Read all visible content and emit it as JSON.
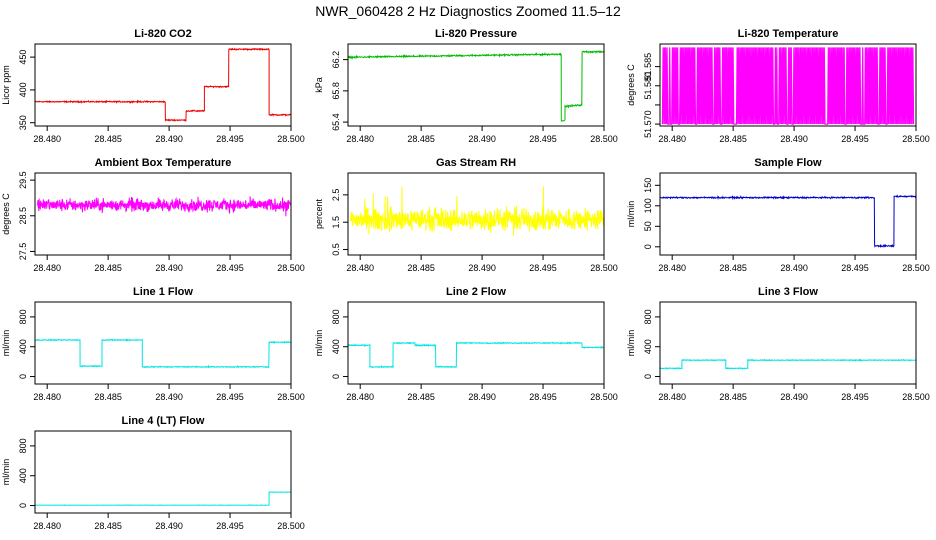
{
  "title": "NWR_060428  2 Hz Diagnostics Zoomed 11.5–12",
  "chart_data": [
    {
      "type": "line",
      "title": "Li-820 CO2",
      "ylabel": "Licor ppm",
      "color": "#ee0000",
      "xlim": [
        28.479,
        28.5
      ],
      "ylim": [
        345,
        470
      ],
      "yticks": [
        350,
        400,
        450
      ],
      "xticks": [
        28.48,
        28.485,
        28.49,
        28.495,
        28.5
      ],
      "xtick_labels": [
        "28.480",
        "28.485",
        "28.490",
        "28.495",
        "28.500"
      ],
      "segments": [
        {
          "x0": 28.479,
          "x1": 28.4897,
          "y": 382
        },
        {
          "x0": 28.4897,
          "x1": 28.4914,
          "y": 354
        },
        {
          "x0": 28.4914,
          "x1": 28.4929,
          "y": 368
        },
        {
          "x0": 28.4929,
          "x1": 28.4949,
          "y": 405
        },
        {
          "x0": 28.4949,
          "x1": 28.4982,
          "y": 462
        },
        {
          "x0": 28.4982,
          "x1": 28.5,
          "y": 362
        }
      ],
      "noise": 0.8
    },
    {
      "type": "line",
      "title": "Li-820 Pressure",
      "ylabel": "kPa",
      "color": "#00bb00",
      "xlim": [
        28.479,
        28.5
      ],
      "ylim": [
        65.35,
        66.4
      ],
      "yticks": [
        65.4,
        65.8,
        66.2
      ],
      "ytick_labels": [
        "65.4",
        "65.8",
        "66.2"
      ],
      "xticks": [
        28.48,
        28.485,
        28.49,
        28.495,
        28.5
      ],
      "xtick_labels": [
        "28.480",
        "28.485",
        "28.490",
        "28.495",
        "28.500"
      ],
      "segments": [
        {
          "x0": 28.479,
          "x1": 28.4965,
          "y0": 66.23,
          "y1": 66.27
        },
        {
          "x0": 28.4965,
          "x1": 28.4968,
          "y": 65.42
        },
        {
          "x0": 28.4968,
          "x1": 28.4982,
          "y0": 65.6,
          "y1": 65.62
        },
        {
          "x0": 28.4982,
          "x1": 28.5,
          "y": 66.3
        }
      ],
      "noise": 0.008
    },
    {
      "type": "line",
      "title": "Li-820 Temperature",
      "ylabel": "degrees C",
      "color": "#ff00ff",
      "xlim": [
        28.479,
        28.5
      ],
      "ylim": [
        51.5695,
        51.5909
      ],
      "yticks": [
        51.57,
        51.575,
        51.58,
        51.585
      ],
      "ytick_labels": [
        "51.570",
        "",
        "51.580",
        "51.585"
      ],
      "xticks": [
        28.48,
        28.485,
        28.49,
        28.495,
        28.5
      ],
      "xtick_labels": [
        "28.480",
        "28.485",
        "28.490",
        "28.495",
        "28.500"
      ],
      "levels": [
        51.57,
        51.59
      ]
    },
    {
      "type": "line",
      "title": "Ambient Box Temperature",
      "ylabel": "degrees C",
      "color": "#ff00ff",
      "xlim": [
        28.479,
        28.5
      ],
      "ylim": [
        27.4,
        29.7
      ],
      "yticks": [
        27.5,
        28.5,
        29.5
      ],
      "xticks": [
        28.48,
        28.485,
        28.49,
        28.495,
        28.5
      ],
      "xtick_labels": [
        "28.480",
        "28.485",
        "28.490",
        "28.495",
        "28.500"
      ],
      "mean": 28.8,
      "noise": 0.15
    },
    {
      "type": "line",
      "title": "Gas Stream RH",
      "ylabel": "percent",
      "color": "#ffff00",
      "xlim": [
        28.479,
        28.5
      ],
      "ylim": [
        0.3,
        3.3
      ],
      "yticks": [
        0.5,
        1.5,
        2.5
      ],
      "ytick_labels": [
        "0.5",
        "1.5",
        "2.5"
      ],
      "xticks": [
        28.48,
        28.485,
        28.49,
        28.495,
        28.5
      ],
      "xtick_labels": [
        "28.480",
        "28.485",
        "28.490",
        "28.495",
        "28.500"
      ],
      "mean": 1.6,
      "noise": 0.35
    },
    {
      "type": "line",
      "title": "Sample Flow",
      "ylabel": "ml/min",
      "color": "#0000cc",
      "xlim": [
        28.479,
        28.5
      ],
      "ylim": [
        -20,
        180
      ],
      "yticks": [
        0,
        50,
        100,
        150
      ],
      "xticks": [
        28.48,
        28.485,
        28.49,
        28.495,
        28.5
      ],
      "xtick_labels": [
        "28.480",
        "28.485",
        "28.490",
        "28.495",
        "28.500"
      ],
      "segments": [
        {
          "x0": 28.479,
          "x1": 28.4966,
          "y": 120
        },
        {
          "x0": 28.4966,
          "x1": 28.4982,
          "y": 2
        },
        {
          "x0": 28.4982,
          "x1": 28.5,
          "y": 123
        }
      ],
      "noise": 1.5
    },
    {
      "type": "line",
      "title": "Line 1 Flow",
      "ylabel": "ml/min",
      "color": "#00e5e5",
      "xlim": [
        28.479,
        28.5
      ],
      "ylim": [
        -100,
        1000
      ],
      "yticks": [
        0,
        400,
        800
      ],
      "xticks": [
        28.48,
        28.485,
        28.49,
        28.495,
        28.5
      ],
      "xtick_labels": [
        "28.480",
        "28.485",
        "28.490",
        "28.495",
        "28.500"
      ],
      "segments": [
        {
          "x0": 28.479,
          "x1": 28.4827,
          "y": 490
        },
        {
          "x0": 28.4827,
          "x1": 28.4845,
          "y": 140
        },
        {
          "x0": 28.4845,
          "x1": 28.4878,
          "y": 490
        },
        {
          "x0": 28.4878,
          "x1": 28.4982,
          "y": 130
        },
        {
          "x0": 28.4982,
          "x1": 28.5,
          "y": 460
        }
      ],
      "noise": 6
    },
    {
      "type": "line",
      "title": "Line 2 Flow",
      "ylabel": "ml/min",
      "color": "#00e5e5",
      "xlim": [
        28.479,
        28.5
      ],
      "ylim": [
        -100,
        1000
      ],
      "yticks": [
        0,
        400,
        800
      ],
      "xticks": [
        28.48,
        28.485,
        28.49,
        28.495,
        28.5
      ],
      "xtick_labels": [
        "28.480",
        "28.485",
        "28.490",
        "28.495",
        "28.500"
      ],
      "segments": [
        {
          "x0": 28.479,
          "x1": 28.4808,
          "y": 420
        },
        {
          "x0": 28.4808,
          "x1": 28.4827,
          "y": 130
        },
        {
          "x0": 28.4827,
          "x1": 28.4845,
          "y": 450
        },
        {
          "x0": 28.4845,
          "x1": 28.4862,
          "y": 420
        },
        {
          "x0": 28.4862,
          "x1": 28.4879,
          "y": 130
        },
        {
          "x0": 28.4879,
          "x1": 28.4982,
          "y": 450
        },
        {
          "x0": 28.4982,
          "x1": 28.5,
          "y": 390
        }
      ],
      "noise": 6
    },
    {
      "type": "line",
      "title": "Line 3 Flow",
      "ylabel": "ml/min",
      "color": "#00e5e5",
      "xlim": [
        28.479,
        28.5
      ],
      "ylim": [
        -100,
        1000
      ],
      "yticks": [
        0,
        400,
        800
      ],
      "xticks": [
        28.48,
        28.485,
        28.49,
        28.495,
        28.5
      ],
      "xtick_labels": [
        "28.480",
        "28.485",
        "28.490",
        "28.495",
        "28.500"
      ],
      "segments": [
        {
          "x0": 28.479,
          "x1": 28.4808,
          "y": 110
        },
        {
          "x0": 28.4808,
          "x1": 28.4844,
          "y": 220
        },
        {
          "x0": 28.4844,
          "x1": 28.4862,
          "y": 110
        },
        {
          "x0": 28.4862,
          "x1": 28.5,
          "y": 220
        }
      ],
      "noise": 5
    },
    {
      "type": "line",
      "title": "Line 4 (LT) Flow",
      "ylabel": "ml/min",
      "color": "#00e5e5",
      "xlim": [
        28.479,
        28.5
      ],
      "ylim": [
        -100,
        1000
      ],
      "yticks": [
        0,
        400,
        800
      ],
      "xticks": [
        28.48,
        28.485,
        28.49,
        28.495,
        28.5
      ],
      "xtick_labels": [
        "28.480",
        "28.485",
        "28.490",
        "28.495",
        "28.500"
      ],
      "segments": [
        {
          "x0": 28.479,
          "x1": 28.4982,
          "y": 5
        },
        {
          "x0": 28.4982,
          "x1": 28.5,
          "y": 180
        }
      ],
      "noise": 2
    }
  ]
}
